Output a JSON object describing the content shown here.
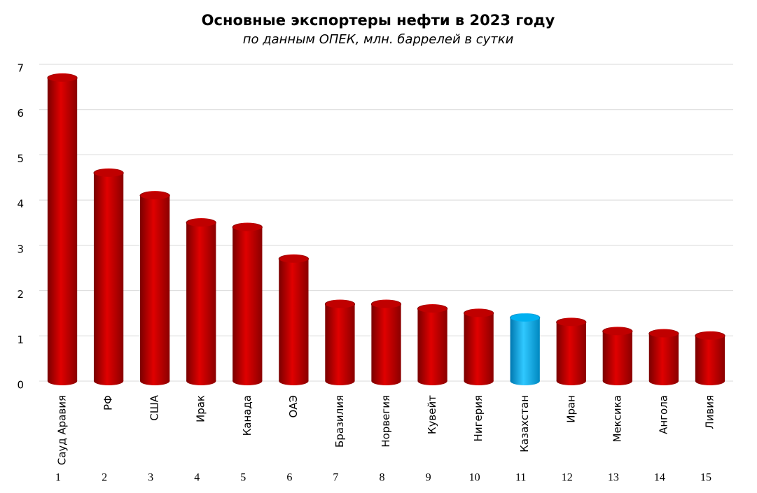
{
  "chart_data": {
    "type": "bar",
    "title": "Основные экспортеры нефти в 2023 году",
    "subtitle": "по данным ОПЕК, млн. баррелей в сутки",
    "categories": [
      "Сауд Аравия",
      "РФ",
      "США",
      "Ирак",
      "Канада",
      "ОАЭ",
      "Бразилия",
      "Норвегия",
      "Кувейт",
      "Нигерия",
      "Казахстан",
      "Иран",
      "Мексика",
      "Ангола",
      "Ливия"
    ],
    "ranks": [
      1,
      2,
      3,
      4,
      5,
      6,
      7,
      8,
      9,
      10,
      11,
      12,
      13,
      14,
      15
    ],
    "values": [
      6.7,
      4.6,
      4.1,
      3.5,
      3.4,
      2.7,
      1.7,
      1.7,
      1.6,
      1.5,
      1.4,
      1.3,
      1.1,
      1.05,
      1.0
    ],
    "colors": [
      "#c00000",
      "#c00000",
      "#c00000",
      "#c00000",
      "#c00000",
      "#c00000",
      "#c00000",
      "#c00000",
      "#c00000",
      "#c00000",
      "#00b0f0",
      "#c00000",
      "#c00000",
      "#c00000",
      "#c00000"
    ],
    "ylim": [
      0,
      7
    ],
    "yticks": [
      0,
      1,
      2,
      3,
      4,
      5,
      6,
      7
    ],
    "grid": true
  }
}
